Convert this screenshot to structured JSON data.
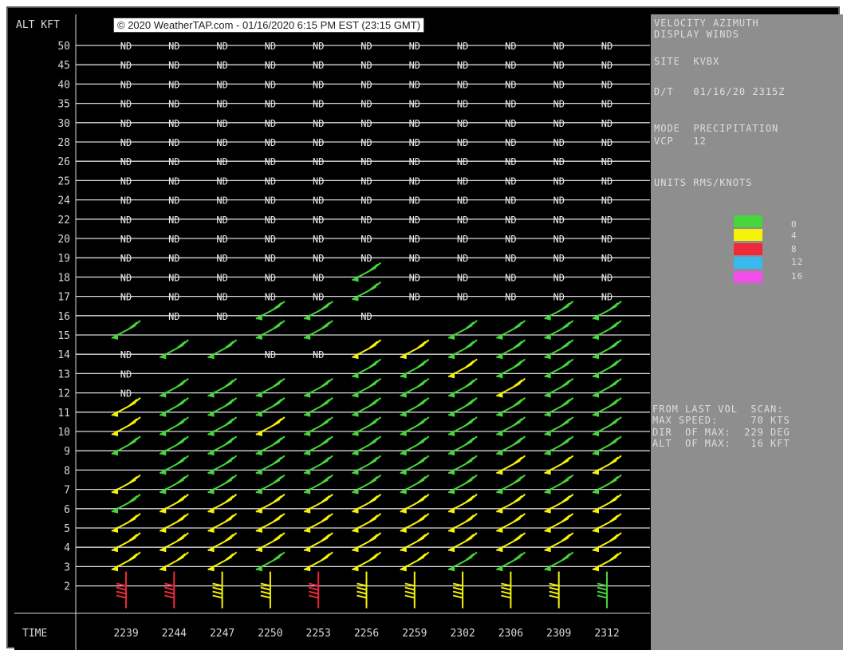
{
  "header": {
    "altitude_label": "ALT KFT",
    "copyright": "© 2020 WeatherTAP.com - 01/16/2020 6:15 PM EST (23:15 GMT)"
  },
  "footer": {
    "time_label": "TIME"
  },
  "panel": {
    "title1": "VELOCITY AZIMUTH",
    "title2": "DISPLAY WINDS",
    "site": "SITE  KVBX",
    "datetime": "D/T   01/16/20 2315Z",
    "mode": "MODE  PRECIPITATION",
    "vcp": "VCP   12",
    "units": "UNITS RMS/KNOTS",
    "scan1": "FROM LAST VOL  SCAN:",
    "scan2": "MAX SPEED:     70 KTS",
    "scan3": "DIR  OF MAX:  229 DEG",
    "scan4": "ALT  OF MAX:   16 KFT"
  },
  "legend": {
    "items": [
      {
        "value": "0",
        "color": "#44d63a"
      },
      {
        "value": "4",
        "color": "#f5f20a"
      },
      {
        "value": "8",
        "color": "#f0283a"
      },
      {
        "value": "12",
        "color": "#3ab8f0"
      },
      {
        "value": "16",
        "color": "#f050e8"
      }
    ]
  },
  "chart_data": {
    "type": "wind_profile",
    "title": "VELOCITY AZIMUTH DISPLAY WINDS",
    "xlabel": "TIME",
    "ylabel": "ALT KFT",
    "times": [
      "2239",
      "2244",
      "2247",
      "2250",
      "2253",
      "2256",
      "2259",
      "2302",
      "2306",
      "2309",
      "2312"
    ],
    "altitudes": [
      50,
      45,
      40,
      35,
      30,
      28,
      26,
      25,
      24,
      22,
      20,
      19,
      18,
      17,
      16,
      15,
      14,
      13,
      12,
      11,
      10,
      9,
      8,
      7,
      6,
      5,
      4,
      3,
      2
    ],
    "no_data_label": "ND",
    "colors": {
      "green": "#44d63a",
      "yellow": "#f5f20a",
      "red": "#f0283a"
    },
    "grid": [
      [
        "ND",
        "ND",
        "ND",
        "ND",
        "ND",
        "ND",
        "ND",
        "ND",
        "ND",
        "ND",
        "ND"
      ],
      [
        "ND",
        "ND",
        "ND",
        "ND",
        "ND",
        "ND",
        "ND",
        "ND",
        "ND",
        "ND",
        "ND"
      ],
      [
        "ND",
        "ND",
        "ND",
        "ND",
        "ND",
        "ND",
        "ND",
        "ND",
        "ND",
        "ND",
        "ND"
      ],
      [
        "ND",
        "ND",
        "ND",
        "ND",
        "ND",
        "ND",
        "ND",
        "ND",
        "ND",
        "ND",
        "ND"
      ],
      [
        "ND",
        "ND",
        "ND",
        "ND",
        "ND",
        "ND",
        "ND",
        "ND",
        "ND",
        "ND",
        "ND"
      ],
      [
        "ND",
        "ND",
        "ND",
        "ND",
        "ND",
        "ND",
        "ND",
        "ND",
        "ND",
        "ND",
        "ND"
      ],
      [
        "ND",
        "ND",
        "ND",
        "ND",
        "ND",
        "ND",
        "ND",
        "ND",
        "ND",
        "ND",
        "ND"
      ],
      [
        "ND",
        "ND",
        "ND",
        "ND",
        "ND",
        "ND",
        "ND",
        "ND",
        "ND",
        "ND",
        "ND"
      ],
      [
        "ND",
        "ND",
        "ND",
        "ND",
        "ND",
        "ND",
        "ND",
        "ND",
        "ND",
        "ND",
        "ND"
      ],
      [
        "ND",
        "ND",
        "ND",
        "ND",
        "ND",
        "ND",
        "ND",
        "ND",
        "ND",
        "ND",
        "ND"
      ],
      [
        "ND",
        "ND",
        "ND",
        "ND",
        "ND",
        "ND",
        "ND",
        "ND",
        "ND",
        "ND",
        "ND"
      ],
      [
        "ND",
        "ND",
        "ND",
        "ND",
        "ND",
        "ND",
        "ND",
        "ND",
        "ND",
        "ND",
        "ND"
      ],
      [
        "ND",
        "ND",
        "ND",
        "ND",
        "ND",
        "G",
        "ND",
        "ND",
        "ND",
        "ND",
        "ND"
      ],
      [
        "ND",
        "ND",
        "ND",
        "ND",
        "ND",
        "G",
        "ND",
        "ND",
        "ND",
        "ND",
        "ND"
      ],
      [
        "",
        "ND",
        "ND",
        "G",
        "G",
        "ND",
        "",
        "",
        "",
        "G",
        "G"
      ],
      [
        "G",
        "",
        "",
        "G",
        "G",
        "",
        "",
        "G",
        "G",
        "G",
        "G"
      ],
      [
        "ND",
        "G",
        "G",
        "ND",
        "ND",
        "Y",
        "Y",
        "G",
        "G",
        "G",
        "G"
      ],
      [
        "ND",
        "",
        "",
        "",
        "",
        "G",
        "G",
        "Y",
        "G",
        "G",
        "G"
      ],
      [
        "ND",
        "G",
        "G",
        "G",
        "G",
        "G",
        "G",
        "G",
        "Y",
        "G",
        "G"
      ],
      [
        "Y",
        "G",
        "G",
        "G",
        "G",
        "G",
        "G",
        "G",
        "G",
        "G",
        "G"
      ],
      [
        "Y",
        "G",
        "G",
        "Y",
        "G",
        "G",
        "G",
        "G",
        "G",
        "G",
        "G"
      ],
      [
        "G",
        "G",
        "G",
        "G",
        "G",
        "G",
        "G",
        "G",
        "G",
        "G",
        "G"
      ],
      [
        "",
        "G",
        "G",
        "G",
        "G",
        "G",
        "G",
        "G",
        "Y",
        "Y",
        "Y"
      ],
      [
        "Y",
        "G",
        "G",
        "G",
        "G",
        "G",
        "G",
        "G",
        "G",
        "G",
        "G"
      ],
      [
        "G",
        "Y",
        "Y",
        "Y",
        "Y",
        "Y",
        "Y",
        "Y",
        "Y",
        "Y",
        "Y"
      ],
      [
        "Y",
        "Y",
        "Y",
        "Y",
        "Y",
        "Y",
        "Y",
        "Y",
        "Y",
        "Y",
        "Y"
      ],
      [
        "Y",
        "Y",
        "Y",
        "Y",
        "Y",
        "Y",
        "Y",
        "Y",
        "Y",
        "Y",
        "Y"
      ],
      [
        "Y",
        "Y",
        "Y",
        "G",
        "Y",
        "Y",
        "Y",
        "G",
        "G",
        "G",
        "Y"
      ],
      [
        "R",
        "R",
        "Y",
        "Y",
        "R",
        "Y",
        "Y",
        "Y",
        "Y",
        "Y",
        "G"
      ]
    ],
    "max_speed_kts": 70,
    "max_dir_deg": 229,
    "max_alt_kft": 16
  }
}
